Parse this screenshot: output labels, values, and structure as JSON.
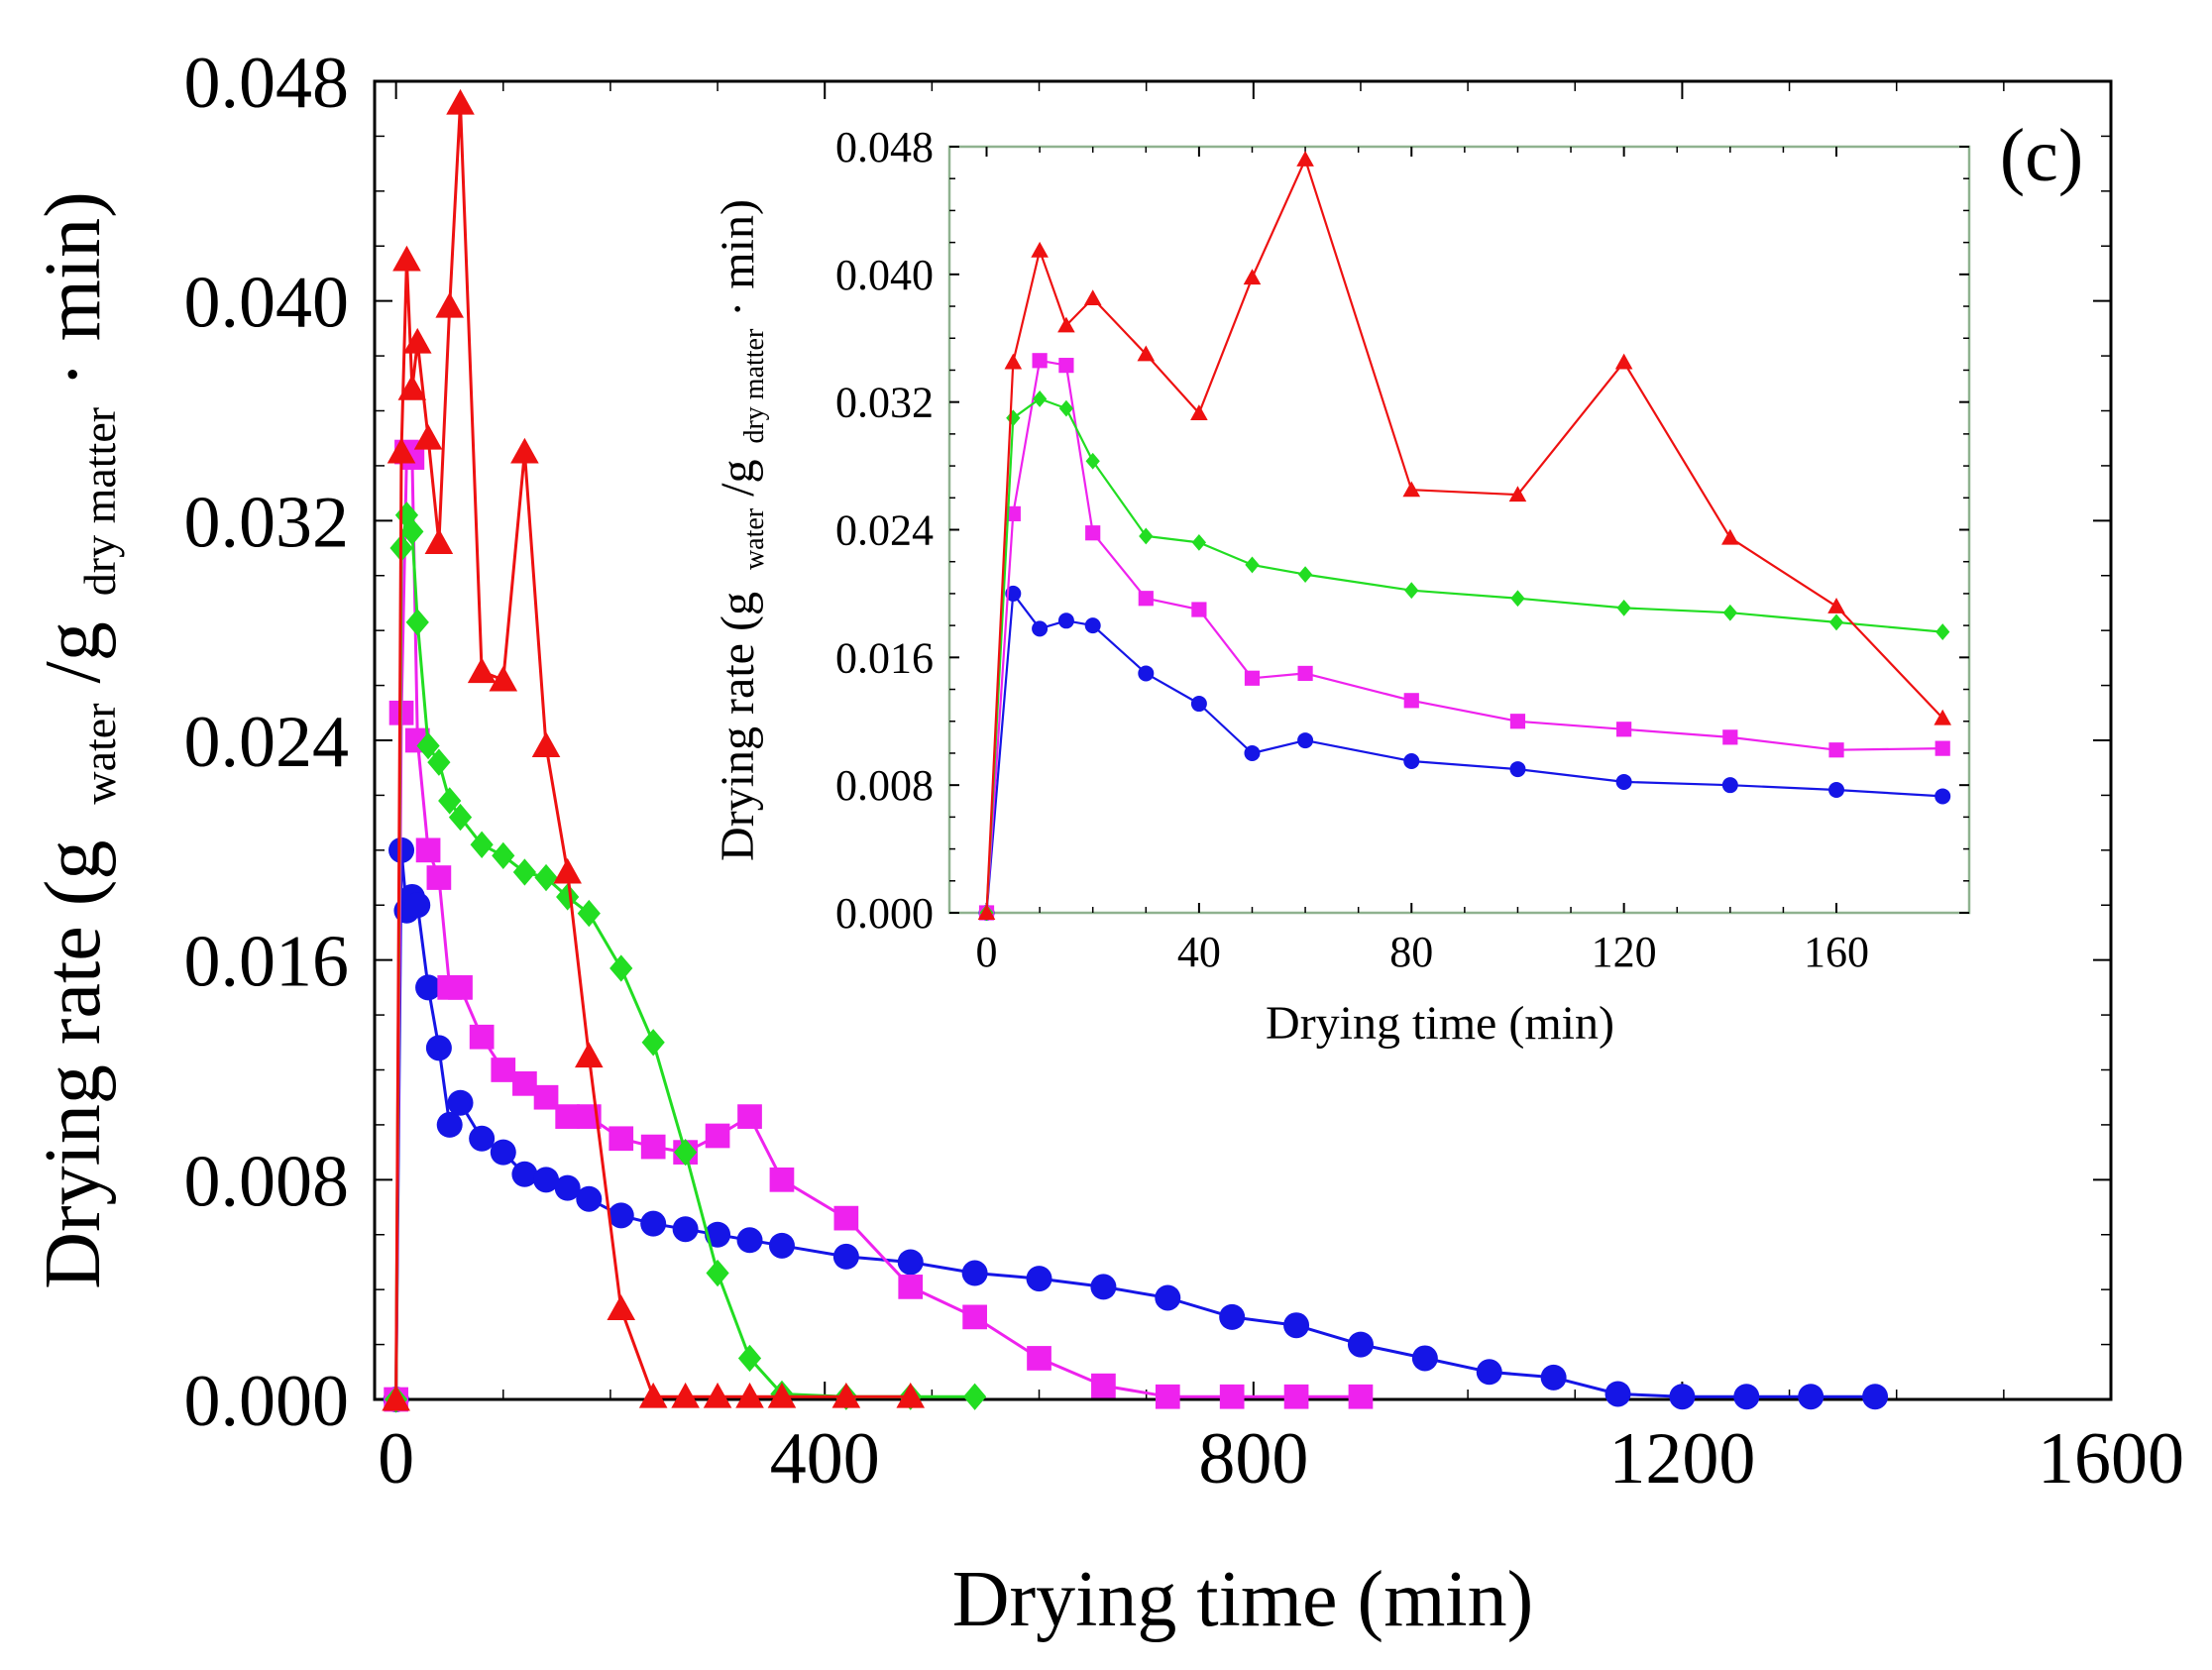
{
  "chart_data": [
    {
      "id": "main",
      "type": "line",
      "xlabel": "Drying time (min)",
      "ylabel": {
        "main": "Drying rate (g",
        "sub1": "water",
        "slash": "/g",
        "sub2": "dry matter",
        "end": "· min)"
      },
      "xlim": [
        -20,
        1600
      ],
      "ylim": [
        0,
        0.048
      ],
      "xticks": [
        0,
        400,
        800,
        1200,
        1600
      ],
      "xtick_labels": [
        "0",
        "400",
        "800",
        "1200",
        "1600"
      ],
      "yticks": [
        0,
        0.008,
        0.016,
        0.024,
        0.032,
        0.04,
        0.048
      ],
      "ytick_labels": [
        "0.000",
        "0.008",
        "0.016",
        "0.024",
        "0.032",
        "0.040",
        "0.048"
      ],
      "series": [
        {
          "name": "blue series",
          "color": "#1515e6",
          "marker": "circle",
          "x": [
            0,
            5,
            10,
            15,
            20,
            30,
            40,
            50,
            60,
            80,
            100,
            120,
            140,
            160,
            180,
            210,
            240,
            270,
            300,
            330,
            360,
            420,
            480,
            540,
            600,
            660,
            720,
            780,
            840,
            900,
            960,
            1020,
            1080,
            1140,
            1200,
            1260,
            1320,
            1380
          ],
          "y": [
            0,
            0.02,
            0.0178,
            0.0183,
            0.018,
            0.015,
            0.0128,
            0.01,
            0.0108,
            0.0095,
            0.009,
            0.0082,
            0.008,
            0.0077,
            0.0073,
            0.0067,
            0.0064,
            0.0062,
            0.006,
            0.0058,
            0.0056,
            0.0052,
            0.005,
            0.0046,
            0.0044,
            0.0041,
            0.0037,
            0.003,
            0.0027,
            0.002,
            0.0015,
            0.001,
            0.0008,
            0.0002,
            0.0001,
            0.0001,
            0.0001,
            0.0001
          ]
        },
        {
          "name": "magenta series",
          "color": "#ee22ee",
          "marker": "square",
          "x": [
            0,
            5,
            10,
            15,
            20,
            30,
            40,
            50,
            60,
            80,
            100,
            120,
            140,
            160,
            180,
            210,
            240,
            270,
            300,
            330,
            360,
            420,
            480,
            540,
            600,
            660,
            720,
            780,
            840,
            900
          ],
          "y": [
            0,
            0.025,
            0.0345,
            0.0343,
            0.024,
            0.02,
            0.019,
            0.015,
            0.015,
            0.0132,
            0.012,
            0.0115,
            0.011,
            0.0103,
            0.0103,
            0.0095,
            0.0092,
            0.009,
            0.0096,
            0.0103,
            0.008,
            0.0066,
            0.0041,
            0.003,
            0.0015,
            0.0005,
            0.0001,
            0.0001,
            0.0001,
            0.0001
          ]
        },
        {
          "name": "green series",
          "color": "#22dd22",
          "marker": "diamond",
          "x": [
            0,
            5,
            10,
            15,
            20,
            30,
            40,
            50,
            60,
            80,
            100,
            120,
            140,
            160,
            180,
            210,
            240,
            270,
            300,
            330,
            360,
            420,
            480,
            540
          ],
          "y": [
            0,
            0.031,
            0.0322,
            0.0316,
            0.0283,
            0.0238,
            0.0232,
            0.0218,
            0.0212,
            0.0202,
            0.0198,
            0.0192,
            0.019,
            0.0183,
            0.0177,
            0.0157,
            0.013,
            0.009,
            0.0046,
            0.0015,
            0.0002,
            0.0001,
            0.0001,
            0.0001
          ]
        },
        {
          "name": "red series",
          "color": "#ee1111",
          "marker": "triangle",
          "x": [
            0,
            5,
            10,
            15,
            20,
            30,
            40,
            50,
            60,
            80,
            100,
            120,
            140,
            160,
            180,
            210,
            240,
            270,
            300,
            330,
            360,
            420,
            480
          ],
          "y": [
            0,
            0.0345,
            0.0415,
            0.0368,
            0.0385,
            0.035,
            0.0312,
            0.0398,
            0.0472,
            0.0265,
            0.0262,
            0.0345,
            0.0238,
            0.0192,
            0.0125,
            0.0033,
            0.0001,
            0.0001,
            0.0001,
            0.0001,
            0.0001,
            0.0001,
            0.0001
          ]
        }
      ]
    },
    {
      "id": "inset",
      "type": "line",
      "panel_label": "(c)",
      "xlabel": "Drying time (min)",
      "ylabel": {
        "main": "Drying rate (g",
        "sub1": "water",
        "slash": "/g",
        "sub2": "dry matter",
        "end": "· min)"
      },
      "xlim": [
        -7,
        185
      ],
      "ylim": [
        0,
        0.048
      ],
      "xticks": [
        0,
        40,
        80,
        120,
        160
      ],
      "xtick_labels": [
        "0",
        "40",
        "80",
        "120",
        "160"
      ],
      "yticks": [
        0,
        0.008,
        0.016,
        0.024,
        0.032,
        0.04,
        0.048
      ],
      "ytick_labels": [
        "0.000",
        "0.008",
        "0.016",
        "0.024",
        "0.032",
        "0.040",
        "0.048"
      ],
      "series": [
        {
          "name": "blue series",
          "color": "#1515e6",
          "marker": "circle",
          "x": [
            0,
            5,
            10,
            15,
            20,
            30,
            40,
            50,
            60,
            80,
            100,
            120,
            140,
            160,
            180
          ],
          "y": [
            0,
            0.02,
            0.0178,
            0.0183,
            0.018,
            0.015,
            0.0131,
            0.01,
            0.0108,
            0.0095,
            0.009,
            0.0082,
            0.008,
            0.0077,
            0.0073
          ]
        },
        {
          "name": "magenta series",
          "color": "#ee22ee",
          "marker": "square",
          "x": [
            0,
            5,
            10,
            15,
            20,
            30,
            40,
            50,
            60,
            80,
            100,
            120,
            140,
            160,
            180
          ],
          "y": [
            0,
            0.025,
            0.0346,
            0.0343,
            0.0238,
            0.0197,
            0.019,
            0.0147,
            0.015,
            0.0133,
            0.012,
            0.0115,
            0.011,
            0.0102,
            0.0103
          ]
        },
        {
          "name": "green series",
          "color": "#22dd22",
          "marker": "diamond",
          "x": [
            0,
            5,
            10,
            15,
            20,
            30,
            40,
            50,
            60,
            80,
            100,
            120,
            140,
            160,
            180
          ],
          "y": [
            0,
            0.031,
            0.0322,
            0.0316,
            0.0283,
            0.0236,
            0.0232,
            0.0218,
            0.0212,
            0.0202,
            0.0197,
            0.0191,
            0.0188,
            0.0182,
            0.0176
          ]
        },
        {
          "name": "red series",
          "color": "#ee1111",
          "marker": "triangle",
          "x": [
            0,
            5,
            10,
            15,
            20,
            30,
            40,
            50,
            60,
            80,
            100,
            120,
            140,
            160,
            180
          ],
          "y": [
            0,
            0.0345,
            0.0415,
            0.0368,
            0.0385,
            0.035,
            0.0313,
            0.0398,
            0.0472,
            0.0265,
            0.0262,
            0.0345,
            0.0235,
            0.0192,
            0.0122
          ]
        }
      ]
    }
  ]
}
